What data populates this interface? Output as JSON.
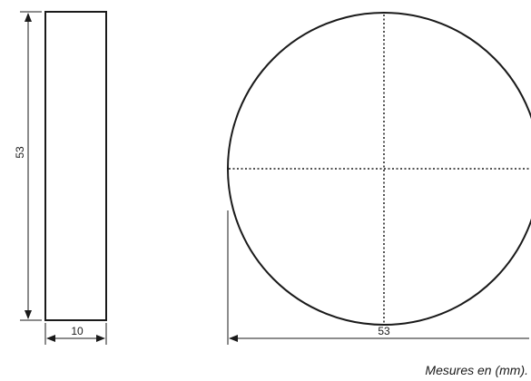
{
  "side_view": {
    "height_label": "53",
    "width_label": "10"
  },
  "front_view": {
    "diameter_label": "53"
  },
  "note": "Mesures en (mm)."
}
